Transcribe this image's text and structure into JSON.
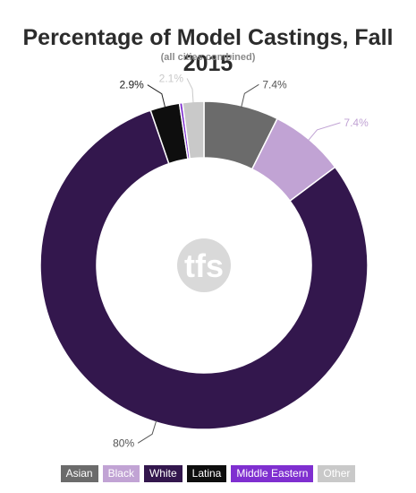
{
  "chart_data": {
    "type": "pie",
    "title": "Percentage of Model Castings, Fall 2015",
    "subtitle": "(all cities combined)",
    "hole": "donut",
    "slices": [
      {
        "name": "Asian",
        "value": 7.4,
        "label": "7.4%",
        "color": "#6b6b6b"
      },
      {
        "name": "Black",
        "value": 7.4,
        "label": "7.4%",
        "color": "#c1a3d4"
      },
      {
        "name": "White",
        "value": 80,
        "label": "80%",
        "color": "#33174d"
      },
      {
        "name": "Latina",
        "value": 2.9,
        "label": "2.9%",
        "color": "#0e0e0e"
      },
      {
        "name": "Middle Eastern",
        "value": 0.3,
        "label": "",
        "color": "#7f2fd0"
      },
      {
        "name": "Other",
        "value": 2.1,
        "label": "2.1%",
        "color": "#c9c9c9"
      }
    ],
    "legend_position": "bottom"
  },
  "watermark": "tfs"
}
